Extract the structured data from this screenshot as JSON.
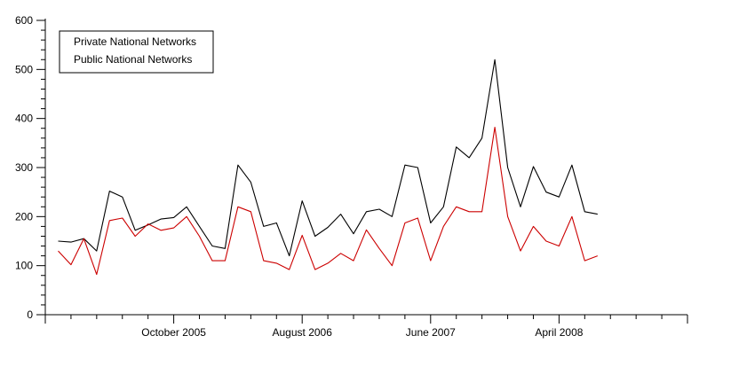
{
  "chart_data": {
    "type": "line",
    "title": "",
    "xlabel": "",
    "ylabel": "",
    "ylim": [
      0,
      600
    ],
    "yticks": [
      0,
      100,
      200,
      300,
      400,
      500,
      600
    ],
    "xlim": [
      0,
      50
    ],
    "x_tick_labels": [
      {
        "x": 10,
        "label": "October 2005"
      },
      {
        "x": 20,
        "label": "August 2006"
      },
      {
        "x": 30,
        "label": "June 2007"
      },
      {
        "x": 40,
        "label": "April 2008"
      }
    ],
    "grid": false,
    "legend_position": "top-left",
    "series": [
      {
        "name": "Private National Networks",
        "color": "#000000",
        "values": [
          150,
          148,
          155,
          130,
          252,
          240,
          172,
          183,
          195,
          198,
          220,
          180,
          140,
          135,
          305,
          270,
          180,
          187,
          120,
          232,
          160,
          178,
          205,
          165,
          210,
          215,
          200,
          305,
          300,
          187,
          220,
          342,
          320,
          360,
          520,
          300,
          220,
          302,
          250,
          240,
          305,
          210,
          205
        ]
      },
      {
        "name": "Public National Networks",
        "color": "#cc0000",
        "values": [
          130,
          102,
          155,
          82,
          192,
          197,
          160,
          185,
          172,
          177,
          200,
          160,
          110,
          110,
          220,
          210,
          110,
          105,
          92,
          162,
          92,
          105,
          125,
          110,
          173,
          135,
          100,
          187,
          197,
          110,
          180,
          220,
          210,
          210,
          382,
          200,
          130,
          180,
          150,
          140,
          200,
          110,
          120
        ]
      }
    ]
  }
}
